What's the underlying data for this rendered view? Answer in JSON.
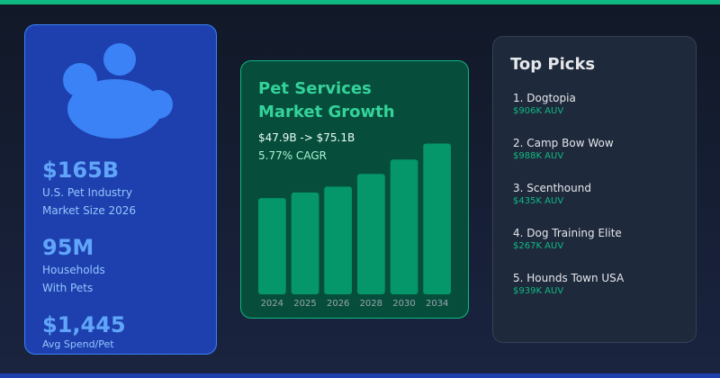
{
  "stats": [
    {
      "value": "$165B",
      "label_lines": [
        "U.S. Pet Industry",
        "Market Size 2026"
      ]
    },
    {
      "value": "95M",
      "label_lines": [
        "Households",
        "With Pets"
      ]
    },
    {
      "value": "$1,445",
      "label_lines": [
        "Avg Spend/Pet"
      ]
    }
  ],
  "chart_card": {
    "title_lines": [
      "Pet Services",
      "Market Growth"
    ],
    "range_text": "$47.9B -> $75.1B",
    "cagr_text": "5.77% CAGR"
  },
  "chart_data": {
    "type": "bar",
    "categories": [
      "2024",
      "2025",
      "2026",
      "2028",
      "2030",
      "2034"
    ],
    "values": [
      47.9,
      50.7,
      53.6,
      60.0,
      67.1,
      75.1
    ],
    "title": "Pet Services Market Growth",
    "xlabel": "",
    "ylabel": "",
    "ylim": [
      0,
      78
    ],
    "grid": false,
    "bar_color": "#059669"
  },
  "picks": {
    "title": "Top Picks",
    "items": [
      {
        "name": "1. Dogtopia",
        "auv": "$906K AUV"
      },
      {
        "name": "2. Camp Bow Wow",
        "auv": "$988K AUV"
      },
      {
        "name": "3. Scenthound",
        "auv": "$435K AUV"
      },
      {
        "name": "4. Dog Training Elite",
        "auv": "$267K AUV"
      },
      {
        "name": "5. Hounds Town USA",
        "auv": "$939K AUV"
      }
    ]
  },
  "colors": {
    "accent_green": "#10b981",
    "accent_blue": "#3b82f6",
    "card_blue": "#1e40af",
    "card_green": "#064e3b",
    "card_slate": "#1e293b"
  },
  "icons": {
    "hero": "paw-print-icon"
  }
}
